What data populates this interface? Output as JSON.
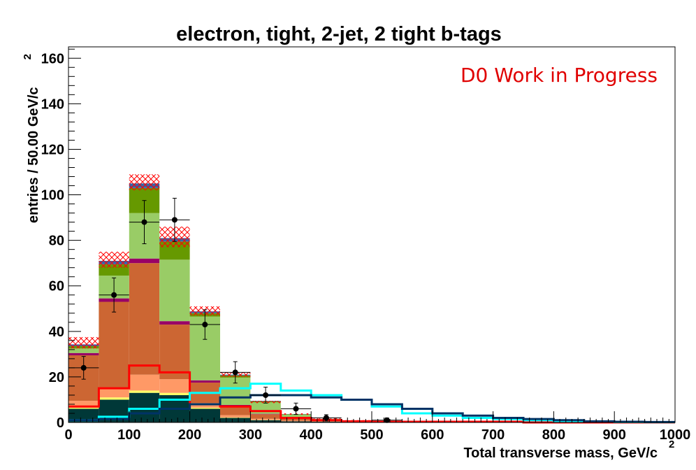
{
  "chart_data": {
    "type": "bar",
    "title": "electron, tight, 2-jet, 2 tight b-tags",
    "xlabel": "Total transverse mass, GeV/c",
    "xlabel_sup": "2",
    "ylabel": "entries / 50.00 GeV/c",
    "ylabel_sup": "2",
    "annotation": "D0 Work in Progress",
    "xlim": [
      0,
      1000
    ],
    "ylim": [
      0,
      165
    ],
    "x_ticks": [
      0,
      100,
      200,
      300,
      400,
      500,
      600,
      700,
      800,
      900,
      1000
    ],
    "y_ticks": [
      0,
      20,
      40,
      60,
      80,
      100,
      120,
      140,
      160
    ],
    "bin_width": 50,
    "bin_edges": [
      0,
      50,
      100,
      150,
      200,
      250,
      300,
      350,
      400,
      450,
      500,
      550,
      600,
      650,
      700,
      750,
      800,
      850,
      900,
      950,
      1000
    ],
    "colors": {
      "dark_teal": "#003838",
      "yellow": "#ffff66",
      "salmon": "#ff9966",
      "rust": "#cc6633",
      "purple": "#990066",
      "light_green": "#99cc66",
      "green": "#669900",
      "blue": "#3366aa",
      "error_band": "#ff0000",
      "signal_red": "#ff0000",
      "signal_cyan": "#00ffff",
      "signal_navy": "#003366",
      "data": "#000000"
    },
    "stack": [
      {
        "color": "#003838",
        "values": [
          6,
          10,
          13,
          12,
          6,
          2,
          1,
          0.5,
          0.3,
          0.2,
          0,
          0,
          0,
          0,
          0,
          0,
          0,
          0,
          0,
          0
        ]
      },
      {
        "color": "#ffff66",
        "values": [
          0.5,
          1,
          1,
          1,
          0.5,
          0.2,
          0.1,
          0,
          0,
          0,
          0,
          0,
          0,
          0,
          0,
          0,
          0,
          0,
          0,
          0
        ]
      },
      {
        "color": "#ff9966",
        "values": [
          3,
          4,
          7,
          6,
          2,
          1,
          0.5,
          0.3,
          0.1,
          0,
          0,
          0,
          0,
          0,
          0,
          0,
          0,
          0,
          0,
          0
        ]
      },
      {
        "color": "#cc6633",
        "values": [
          20,
          38,
          49,
          24,
          9,
          4,
          2,
          1,
          0.5,
          0.3,
          0,
          0,
          0,
          0,
          0,
          0,
          0,
          0,
          0,
          0
        ]
      },
      {
        "color": "#990066",
        "values": [
          1,
          1.5,
          2,
          1.5,
          1,
          0.5,
          0.2,
          0.1,
          0,
          0,
          0,
          0,
          0,
          0,
          0,
          0,
          0,
          0,
          0,
          0
        ]
      },
      {
        "color": "#99cc66",
        "values": [
          2,
          10,
          20,
          27,
          28,
          12,
          5,
          1.5,
          0.5,
          0.2,
          0,
          0,
          0,
          0,
          0,
          0,
          0,
          0,
          0,
          0
        ]
      },
      {
        "color": "#669900",
        "values": [
          1,
          5,
          11,
          8,
          1.5,
          1,
          0.5,
          0.2,
          0.1,
          0,
          0,
          0,
          0,
          0,
          0,
          0,
          0,
          0,
          0,
          0
        ]
      },
      {
        "color": "#3366aa",
        "values": [
          0.8,
          1.5,
          2,
          1.5,
          0.8,
          0.3,
          0.2,
          0.1,
          0,
          0,
          0,
          0,
          0,
          0,
          0,
          0,
          0,
          0,
          0,
          0
        ]
      }
    ],
    "uncertainty_band": {
      "color": "#ff0000",
      "low": [
        32.5,
        68,
        102,
        77,
        47,
        20,
        8.5,
        3.4,
        1.4,
        0.6,
        0,
        0,
        0,
        0,
        0,
        0,
        0,
        0,
        0,
        0
      ],
      "high": [
        37.5,
        75,
        109,
        86,
        51,
        22,
        9.5,
        4.0,
        1.8,
        1.0,
        0,
        0,
        0,
        0,
        0,
        0,
        0,
        0,
        0,
        0
      ]
    },
    "overlay_lines": [
      {
        "color": "#ff0000",
        "values": [
          7,
          15,
          25,
          22,
          8,
          7,
          5,
          2,
          1,
          0.5,
          0.3,
          0.3,
          0.3,
          0.3,
          0.3,
          0,
          0,
          0,
          0,
          0
        ]
      },
      {
        "color": "#00ffff",
        "values": [
          1,
          2.5,
          6,
          10,
          13,
          15,
          17,
          14,
          12,
          10,
          7,
          4,
          3,
          2,
          1.5,
          1,
          0.5,
          0.3,
          0.2,
          0.1
        ]
      },
      {
        "color": "#003366",
        "values": [
          1,
          1.5,
          4,
          6,
          8,
          11,
          12,
          12,
          11,
          10,
          8,
          6,
          4,
          3,
          2,
          1.5,
          1,
          0.5,
          0.3,
          0.2
        ]
      }
    ],
    "data_points": {
      "x": [
        25,
        75,
        125,
        175,
        225,
        275,
        325,
        375,
        425,
        525
      ],
      "y": [
        24,
        56,
        88,
        89,
        43,
        22,
        12,
        6,
        2,
        1
      ],
      "yerr": [
        5,
        7.5,
        9.5,
        9.5,
        6.5,
        4.7,
        3.5,
        2.5,
        1.4,
        1
      ]
    }
  }
}
